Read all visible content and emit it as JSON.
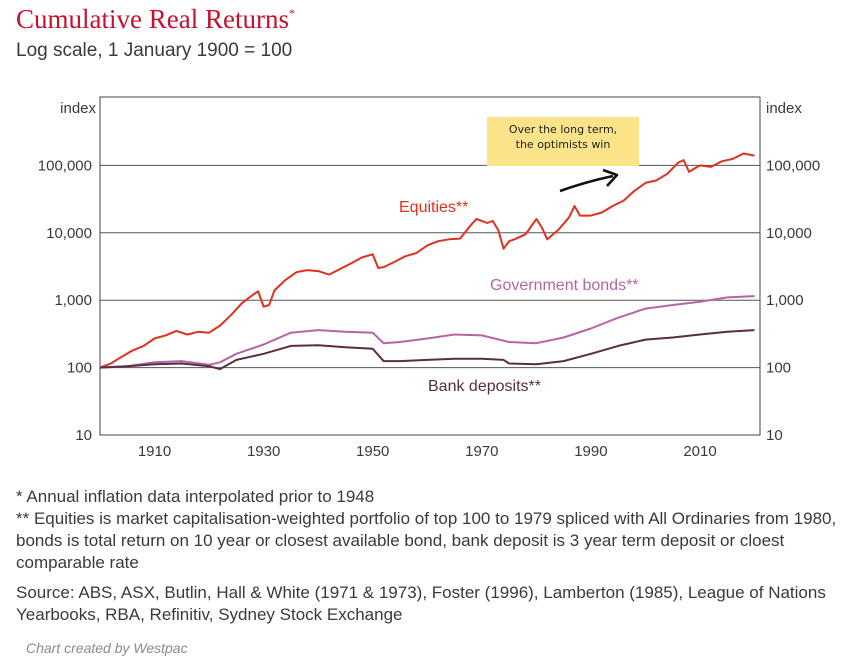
{
  "header": {
    "title": "Cumulative Real Returns",
    "title_mark": "*",
    "subtitle": "Log scale, 1 January 1900 = 100"
  },
  "chart_data": {
    "type": "line",
    "ylabel_left": "index",
    "ylabel_right": "index",
    "y_scale": "log",
    "ylim": [
      10,
      400000
    ],
    "xlim": [
      1900,
      2021
    ],
    "y_ticks": [
      10,
      100,
      1000,
      10000,
      100000
    ],
    "y_tick_labels": [
      "10",
      "100",
      "1,000",
      "10,000",
      "100,000"
    ],
    "x_ticks": [
      1910,
      1930,
      1950,
      1970,
      1990,
      2010
    ],
    "x_tick_labels": [
      "1910",
      "1930",
      "1950",
      "1970",
      "1990",
      "2010"
    ],
    "grid": "horizontal",
    "annotation": {
      "lines": [
        "Over the long term,",
        "the optimists win"
      ]
    },
    "series": [
      {
        "name": "Equities**",
        "color": "#e0301e",
        "x": [
          1900,
          1902,
          1904,
          1906,
          1908,
          1910,
          1912,
          1914,
          1916,
          1918,
          1920,
          1922,
          1924,
          1926,
          1928,
          1929,
          1930,
          1931,
          1932,
          1934,
          1936,
          1938,
          1940,
          1942,
          1944,
          1946,
          1948,
          1950,
          1951,
          1952,
          1954,
          1956,
          1958,
          1960,
          1962,
          1964,
          1966,
          1968,
          1969,
          1970,
          1971,
          1972,
          1973,
          1974,
          1975,
          1976,
          1978,
          1980,
          1981,
          1982,
          1984,
          1986,
          1987,
          1988,
          1990,
          1992,
          1994,
          1996,
          1998,
          2000,
          2002,
          2004,
          2006,
          2007,
          2008,
          2009,
          2010,
          2012,
          2014,
          2016,
          2018,
          2020
        ],
        "values": [
          100,
          115,
          145,
          180,
          210,
          270,
          300,
          350,
          310,
          340,
          330,
          420,
          600,
          900,
          1200,
          1350,
          800,
          850,
          1400,
          2000,
          2600,
          2800,
          2700,
          2400,
          2900,
          3500,
          4300,
          4800,
          3000,
          3100,
          3700,
          4500,
          5000,
          6500,
          7500,
          8000,
          8200,
          13000,
          16000,
          15000,
          14000,
          15000,
          11000,
          5800,
          7500,
          8000,
          9500,
          16000,
          12000,
          8000,
          11000,
          17000,
          25000,
          18000,
          18000,
          20000,
          25000,
          30000,
          42000,
          55000,
          60000,
          75000,
          110000,
          120000,
          80000,
          90000,
          100000,
          95000,
          115000,
          125000,
          150000,
          140000
        ]
      },
      {
        "name": "Government bonds**",
        "color": "#b565a7",
        "x": [
          1900,
          1905,
          1910,
          1915,
          1920,
          1922,
          1925,
          1930,
          1935,
          1940,
          1945,
          1950,
          1952,
          1955,
          1960,
          1965,
          1970,
          1975,
          1980,
          1985,
          1990,
          1995,
          2000,
          2005,
          2010,
          2015,
          2020
        ],
        "values": [
          100,
          105,
          120,
          125,
          110,
          120,
          160,
          220,
          330,
          360,
          340,
          330,
          230,
          240,
          270,
          310,
          300,
          240,
          230,
          280,
          380,
          550,
          750,
          850,
          950,
          1100,
          1150
        ]
      },
      {
        "name": "Bank deposits**",
        "color": "#5a2d45",
        "x": [
          1900,
          1905,
          1910,
          1915,
          1920,
          1922,
          1925,
          1930,
          1935,
          1940,
          1945,
          1950,
          1952,
          1955,
          1960,
          1965,
          1970,
          1974,
          1975,
          1980,
          1985,
          1990,
          1995,
          2000,
          2005,
          2010,
          2015,
          2020
        ],
        "values": [
          100,
          105,
          112,
          115,
          105,
          95,
          130,
          160,
          210,
          215,
          200,
          190,
          125,
          125,
          130,
          135,
          135,
          130,
          115,
          112,
          125,
          160,
          210,
          260,
          280,
          310,
          340,
          360
        ]
      }
    ]
  },
  "notes": {
    "line1": "* Annual inflation data interpolated prior to 1948",
    "line2": "** Equities is market capitalisation-weighted portfolio of top 100 to 1979 spliced with All Ordinaries from 1980, bonds is total return on 10 year or closest available bond, bank deposit is 3 year term deposit or cloest comparable rate",
    "source": "Source: ABS, ASX, Butlin, Hall & White (1971 & 1973), Foster (1996), Lamberton (1985), League of Nations Yearbooks, RBA, Refinitiv, Sydney Stock Exchange"
  },
  "credit": "Chart created by Westpac"
}
